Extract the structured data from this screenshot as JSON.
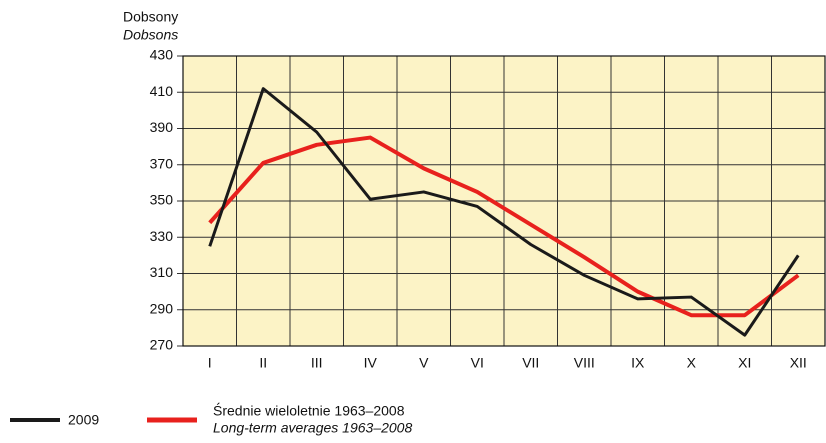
{
  "chart_data": {
    "type": "line",
    "y_label": [
      "Dobsony",
      "Dobsons"
    ],
    "categories": [
      "I",
      "II",
      "III",
      "IV",
      "V",
      "VI",
      "VII",
      "VIII",
      "IX",
      "X",
      "XI",
      "XII"
    ],
    "series": [
      {
        "name": [
          "2009"
        ],
        "color": "#1a1a1a",
        "values": [
          325,
          412,
          388,
          351,
          355,
          347,
          326,
          309,
          296,
          297,
          276,
          320
        ]
      },
      {
        "name": [
          "Średnie wieloletnie 1963–2008",
          "Long-term averages 1963–2008"
        ],
        "color": "#e8211d",
        "values": [
          338,
          371,
          381,
          385,
          368,
          355,
          337,
          319,
          300,
          287,
          287,
          309
        ]
      }
    ],
    "ylim": [
      270,
      430
    ],
    "yticks": [
      270,
      290,
      310,
      330,
      350,
      370,
      390,
      410,
      430
    ],
    "grid": true,
    "plot_background": "#fcf3c6"
  }
}
